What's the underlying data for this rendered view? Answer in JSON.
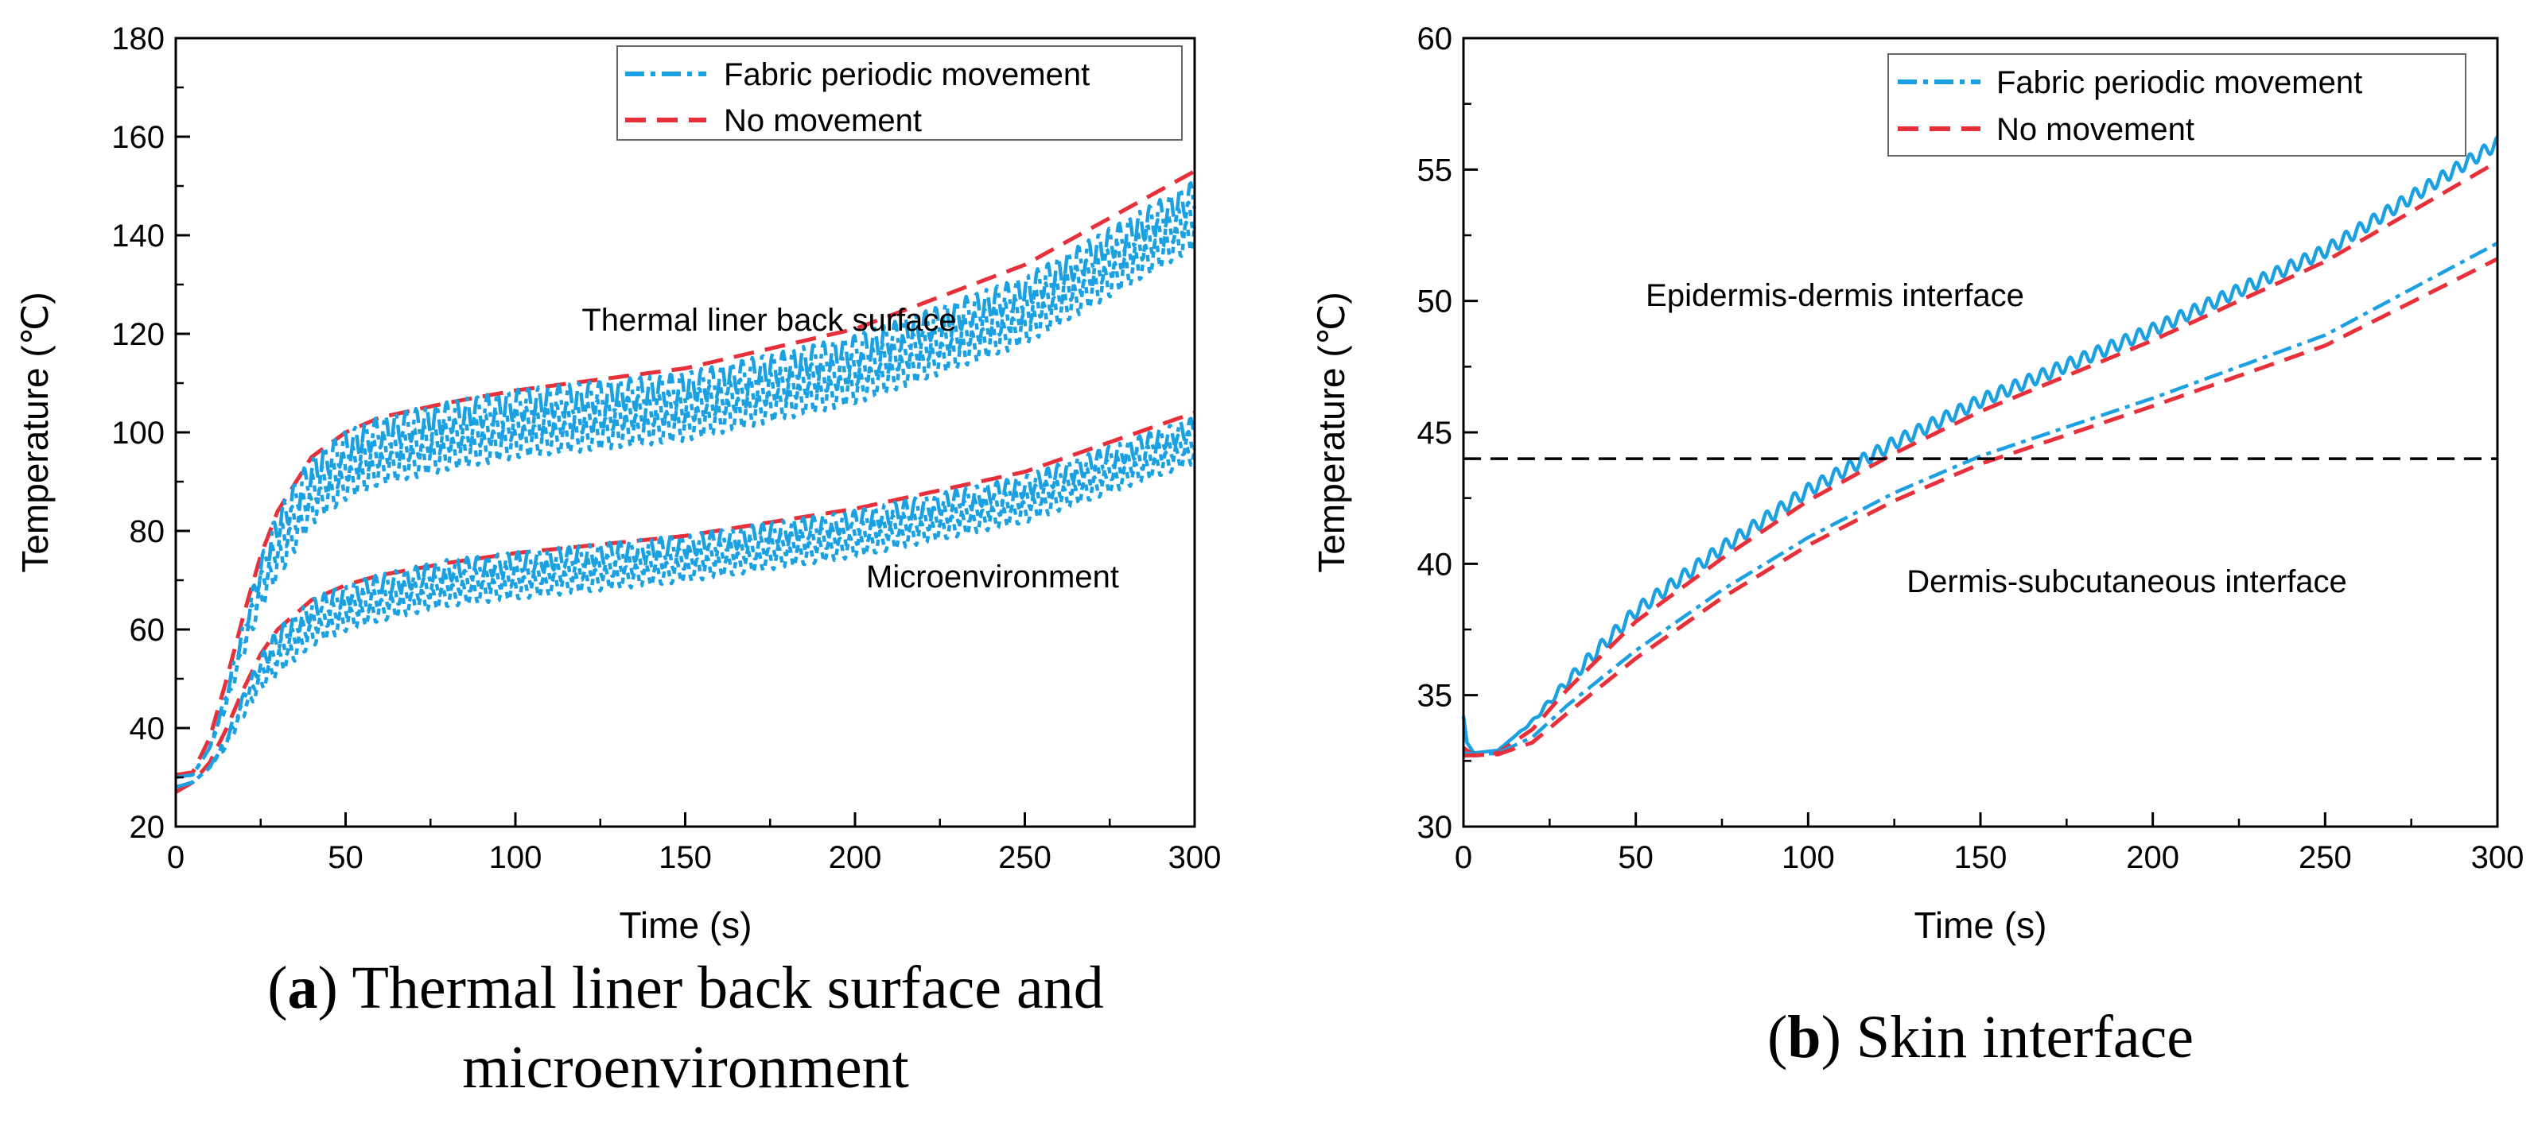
{
  "colors": {
    "fabric_periodic_movement": "#1BA1E2",
    "no_movement": "#E8303A",
    "threshold": "#000000"
  },
  "chart_data": [
    {
      "type": "line",
      "panel": "a",
      "caption_letter": "a",
      "caption_line1": ") Thermal liner back surface and",
      "caption_line2": "microenvironment",
      "xlabel": "Time (s)",
      "ylabel": "Temperature (℃)",
      "xlim": [
        0,
        300
      ],
      "ylim": [
        20,
        180
      ],
      "xticks": [
        0,
        50,
        100,
        150,
        200,
        250,
        300
      ],
      "yticks": [
        20,
        40,
        60,
        80,
        100,
        120,
        140,
        160,
        180
      ],
      "legend": {
        "position": "top-right",
        "entries": [
          "Fabric periodic movement",
          "No movement"
        ]
      },
      "annotations": [
        {
          "text": "Thermal liner back surface",
          "x": 100,
          "y": 122
        },
        {
          "text": "Microenvironment",
          "x": 215,
          "y": 63
        }
      ],
      "series": [
        {
          "name": "Thermal liner back surface - No movement",
          "legend": "No movement",
          "style": "dashed",
          "points": [
            [
              0,
              30.5
            ],
            [
              5,
              31
            ],
            [
              10,
              38
            ],
            [
              15,
              50
            ],
            [
              20,
              63
            ],
            [
              25,
              75
            ],
            [
              30,
              84
            ],
            [
              40,
              95
            ],
            [
              50,
              100
            ],
            [
              60,
              103
            ],
            [
              80,
              106
            ],
            [
              100,
              108.5
            ],
            [
              150,
              113
            ],
            [
              200,
              121
            ],
            [
              250,
              134
            ],
            [
              300,
              153
            ]
          ]
        },
        {
          "name": "Thermal liner back surface - Fabric periodic movement",
          "legend": "Fabric periodic movement",
          "style": "dashdot",
          "oscillation": {
            "start": 10,
            "period": 3,
            "amplitude": 3.2,
            "lines": 3,
            "spread": 3.8
          },
          "points": [
            [
              0,
              30
            ],
            [
              5,
              30.5
            ],
            [
              10,
              36
            ],
            [
              15,
              47
            ],
            [
              20,
              60
            ],
            [
              25,
              72
            ],
            [
              30,
              81
            ],
            [
              40,
              92
            ],
            [
              50,
              97
            ],
            [
              60,
              100
            ],
            [
              80,
              103
            ],
            [
              100,
              105.5
            ],
            [
              150,
              109
            ],
            [
              200,
              116.5
            ],
            [
              250,
              128.5
            ],
            [
              300,
              148
            ]
          ]
        },
        {
          "name": "Microenvironment - No movement",
          "legend": "No movement",
          "style": "dashed",
          "points": [
            [
              0,
              27
            ],
            [
              5,
              29
            ],
            [
              10,
              33
            ],
            [
              15,
              40
            ],
            [
              20,
              48
            ],
            [
              25,
              55
            ],
            [
              30,
              60
            ],
            [
              40,
              66
            ],
            [
              50,
              69
            ],
            [
              60,
              71
            ],
            [
              80,
              73.5
            ],
            [
              100,
              75.5
            ],
            [
              150,
              79
            ],
            [
              200,
              84.5
            ],
            [
              250,
              92
            ],
            [
              300,
              104
            ]
          ]
        },
        {
          "name": "Microenvironment - Fabric periodic movement",
          "legend": "Fabric periodic movement",
          "style": "dashdot",
          "oscillation": {
            "start": 10,
            "period": 3,
            "amplitude": 2.2,
            "lines": 3,
            "spread": 2.6
          },
          "points": [
            [
              0,
              28
            ],
            [
              5,
              29
            ],
            [
              10,
              32
            ],
            [
              15,
              38
            ],
            [
              20,
              46
            ],
            [
              25,
              53
            ],
            [
              30,
              58
            ],
            [
              40,
              64
            ],
            [
              50,
              67
            ],
            [
              60,
              69
            ],
            [
              80,
              72
            ],
            [
              100,
              73.5
            ],
            [
              150,
              77
            ],
            [
              200,
              82
            ],
            [
              250,
              89
            ],
            [
              300,
              101
            ]
          ]
        }
      ]
    },
    {
      "type": "line",
      "panel": "b",
      "caption_letter": "b",
      "caption_line1": ") Skin interface",
      "xlabel": "Time (s)",
      "ylabel": "Temperature (℃)",
      "xlim": [
        0,
        300
      ],
      "ylim": [
        30,
        60
      ],
      "xticks": [
        0,
        50,
        100,
        150,
        200,
        250,
        300
      ],
      "yticks": [
        30,
        35,
        40,
        45,
        50,
        55,
        60
      ],
      "legend": {
        "position": "top-right",
        "entries": [
          "Fabric periodic movement",
          "No movement"
        ]
      },
      "annotations": [
        {
          "text": "Epidermis-dermis interface",
          "x": 107,
          "y": 49.7
        },
        {
          "text": "Dermis-subcutaneous interface",
          "x": 148,
          "y": 40.8
        }
      ],
      "reference_line": {
        "y": 44,
        "style": "dashed"
      },
      "series": [
        {
          "name": "Epidermis-dermis interface - Fabric periodic movement",
          "legend": "Fabric periodic movement",
          "style": "solid",
          "oscillation": {
            "start": 15,
            "period": 4,
            "amplitude": 0.25,
            "lines": 1,
            "spread": 0
          },
          "points": [
            [
              0,
              34.2
            ],
            [
              1,
              33.2
            ],
            [
              3,
              32.8
            ],
            [
              10,
              32.9
            ],
            [
              20,
              34
            ],
            [
              30,
              35.5
            ],
            [
              50,
              38.2
            ],
            [
              75,
              40.6
            ],
            [
              100,
              42.8
            ],
            [
              125,
              44.6
            ],
            [
              150,
              46.2
            ],
            [
              200,
              48.9
            ],
            [
              250,
              51.9
            ],
            [
              300,
              56
            ]
          ]
        },
        {
          "name": "Epidermis-dermis interface - No movement",
          "legend": "No movement",
          "style": "dashed",
          "points": [
            [
              0,
              33
            ],
            [
              3,
              32.7
            ],
            [
              10,
              32.8
            ],
            [
              20,
              33.7
            ],
            [
              30,
              35.2
            ],
            [
              50,
              37.8
            ],
            [
              75,
              40.2
            ],
            [
              100,
              42.4
            ],
            [
              125,
              44.2
            ],
            [
              150,
              45.8
            ],
            [
              200,
              48.5
            ],
            [
              250,
              51.5
            ],
            [
              300,
              55.3
            ]
          ]
        },
        {
          "name": "Dermis-subcutaneous interface - Fabric periodic movement",
          "legend": "Fabric periodic movement",
          "style": "dashdot",
          "points": [
            [
              0,
              32.8
            ],
            [
              5,
              32.75
            ],
            [
              10,
              32.8
            ],
            [
              20,
              33.4
            ],
            [
              30,
              34.6
            ],
            [
              50,
              36.7
            ],
            [
              75,
              39
            ],
            [
              100,
              41
            ],
            [
              125,
              42.7
            ],
            [
              150,
              44.1
            ],
            [
              200,
              46.3
            ],
            [
              250,
              48.7
            ],
            [
              300,
              52.2
            ]
          ]
        },
        {
          "name": "Dermis-subcutaneous interface - No movement",
          "legend": "No movement",
          "style": "dashed",
          "points": [
            [
              0,
              32.7
            ],
            [
              10,
              32.75
            ],
            [
              20,
              33.2
            ],
            [
              30,
              34.3
            ],
            [
              50,
              36.4
            ],
            [
              75,
              38.7
            ],
            [
              100,
              40.7
            ],
            [
              125,
              42.4
            ],
            [
              150,
              43.8
            ],
            [
              200,
              46
            ],
            [
              250,
              48.3
            ],
            [
              300,
              51.6
            ]
          ]
        }
      ]
    }
  ]
}
